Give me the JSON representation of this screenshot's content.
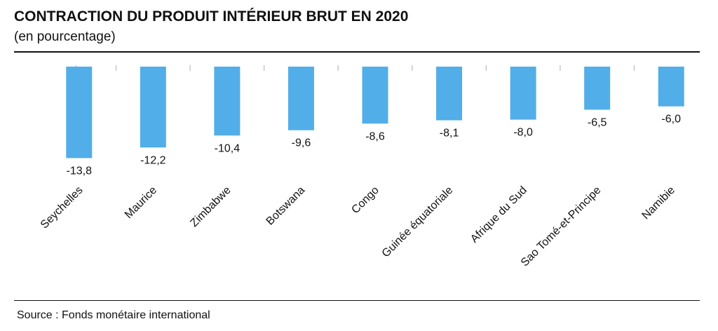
{
  "header": {
    "title": "CONTRACTION DU PRODUIT INTÉRIEUR BRUT EN 2020",
    "subtitle": "(en pourcentage)"
  },
  "footer": {
    "source": "Source : Fonds monétaire international"
  },
  "colors": {
    "bar": "#52aee8",
    "text": "#111111",
    "tick": "#c8c8c8"
  },
  "chart_data": {
    "type": "bar",
    "title": "CONTRACTION DU PRODUIT INTÉRIEUR BRUT EN 2020",
    "subtitle": "(en pourcentage)",
    "xlabel": "",
    "ylabel": "",
    "categories": [
      "Seychelles",
      "Maurice",
      "Zimbabwe",
      "Botswana",
      "Congo",
      "Guinée équatoriale",
      "Afrique du Sud",
      "Sao Tomé-et-Principe",
      "Namibie"
    ],
    "values": [
      -13.8,
      -12.2,
      -10.4,
      -9.6,
      -8.6,
      -8.1,
      -8.0,
      -6.5,
      -6.0
    ],
    "value_labels": [
      "-13,8",
      "-12,2",
      "-10,4",
      "-9,6",
      "-8,6",
      "-8,1",
      "-8,0",
      "-6,5",
      "-6,0"
    ],
    "ylim": [
      -14,
      0
    ],
    "grid": false,
    "legend": "none"
  }
}
